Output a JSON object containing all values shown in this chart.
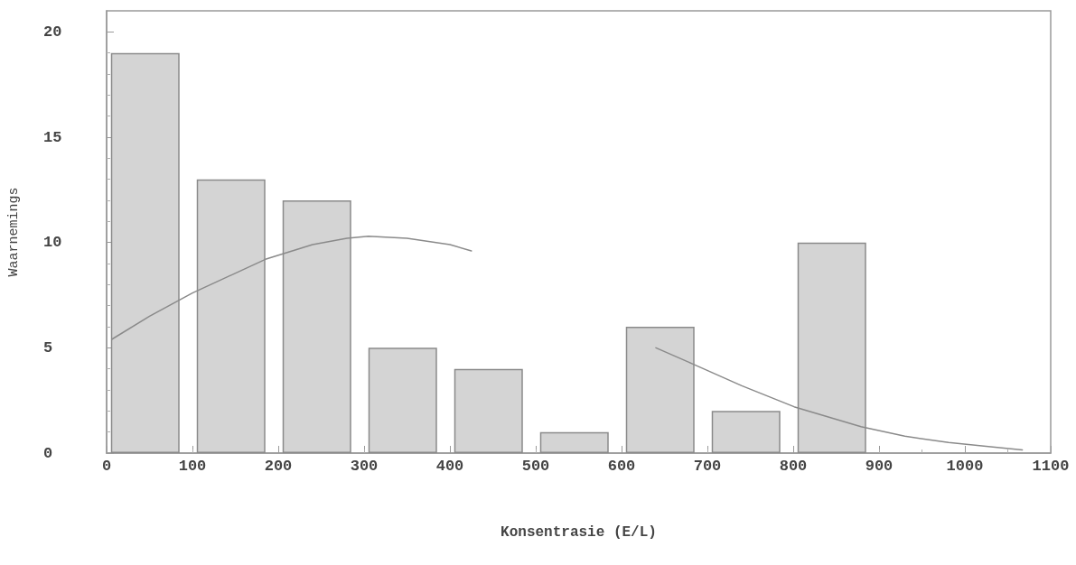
{
  "chart_data": {
    "type": "bar",
    "xlabel": "Konsentrasie (E/L)",
    "ylabel": "Waarnemings",
    "x": [
      45,
      145,
      245,
      345,
      445,
      545,
      645,
      745,
      845
    ],
    "series": [
      {
        "color": "#d4d4d4",
        "values": [
          19,
          13,
          12,
          5,
          4,
          1,
          6,
          2,
          10
        ]
      },
      {
        "type": "line",
        "color": "#8a8a8a",
        "x": [
          6,
          50,
          100,
          185,
          240,
          280,
          305,
          350,
          400,
          425,
          604,
          640,
          682,
          740,
          801,
          879,
          930,
          981,
          1030,
          1067
        ],
        "values": [
          5.4,
          6.5,
          7.6,
          9.2,
          9.9,
          10.2,
          10.3,
          10.2,
          9.9,
          9.6,
          null,
          5.0,
          4.25,
          3.2,
          2.2,
          1.25,
          0.8,
          0.5,
          0.3,
          0.15
        ]
      }
    ],
    "xlim": [
      0,
      1100
    ],
    "xticks": [
      0,
      100,
      200,
      300,
      400,
      500,
      600,
      700,
      800,
      900,
      1000,
      1100
    ],
    "ylim": [
      0,
      21
    ],
    "yticks": [
      0,
      5,
      10,
      15,
      20
    ],
    "grid": false,
    "marker": "none",
    "line_style": "solid"
  }
}
